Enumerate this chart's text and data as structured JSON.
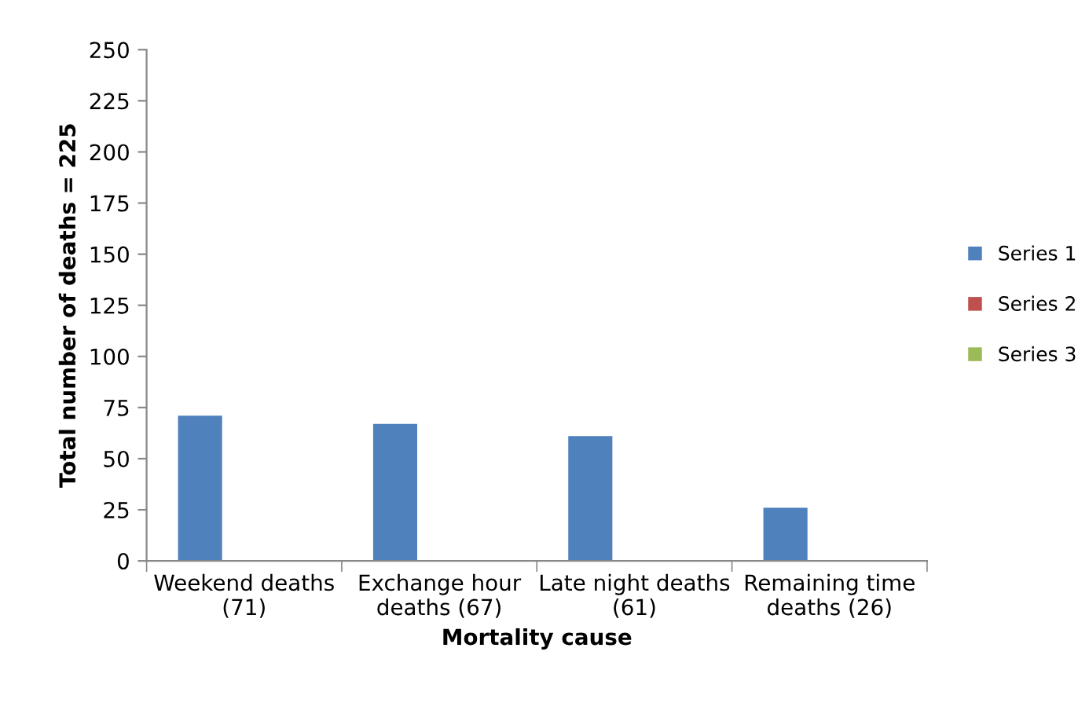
{
  "chart_data": {
    "type": "bar",
    "xlabel": "Mortality cause",
    "ylabel": "Total number of deaths = 225",
    "categories": [
      "Weekend deaths\n(71)",
      "Exchange hour\ndeaths (67)",
      "Late night deaths\n(61)",
      "Remaining time\ndeaths (26)"
    ],
    "series": [
      {
        "name": "Series 1",
        "color": "#4f81bd",
        "values": [
          71,
          67,
          61,
          26
        ]
      },
      {
        "name": "Series 2",
        "color": "#c0504d",
        "values": [
          null,
          null,
          null,
          null
        ]
      },
      {
        "name": "Series 3",
        "color": "#9bbb59",
        "values": [
          null,
          null,
          null,
          null
        ]
      }
    ],
    "ylim": [
      0,
      250
    ],
    "yticks": [
      0,
      25,
      50,
      75,
      100,
      125,
      150,
      175,
      200,
      225,
      250
    ],
    "grid": false,
    "legend": "right"
  }
}
